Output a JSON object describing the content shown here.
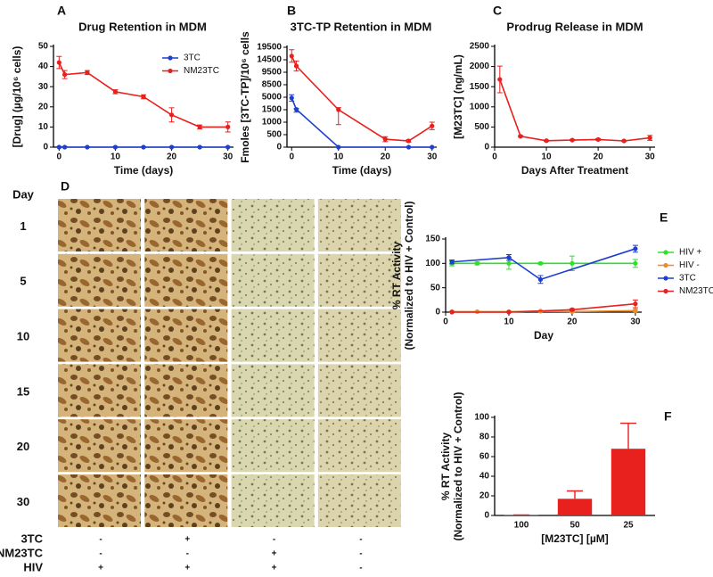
{
  "chart_data": [
    {
      "type": "line",
      "panel": "A",
      "title": "Drug Retention in MDM",
      "ylabel": [
        "[Drug] (µg/10⁶ cells)"
      ],
      "xlabel": "Time (days)",
      "xlim": [
        -1,
        31
      ],
      "xticks": [
        0,
        10,
        20,
        30
      ],
      "ylim": [
        0,
        50
      ],
      "yticks": [
        0,
        10,
        20,
        30,
        40,
        50
      ],
      "legend": "upper right",
      "series": [
        {
          "name": "3TC",
          "color": "#1f3fd0",
          "x": [
            0,
            1,
            5,
            10,
            15,
            20,
            25,
            30
          ],
          "values": [
            0,
            0,
            0,
            0,
            0,
            0,
            0,
            0
          ],
          "errors": [
            0.3,
            0.3,
            0.3,
            0.3,
            0.3,
            0.3,
            0.3,
            0.3
          ]
        },
        {
          "name": "NM23TC",
          "color": "#e8201e",
          "x": [
            0,
            1,
            5,
            10,
            15,
            20,
            25,
            30
          ],
          "values": [
            42,
            36,
            37,
            27.5,
            25,
            16,
            10,
            10
          ],
          "errors": [
            3,
            2,
            1,
            1,
            1,
            3.5,
            1,
            2.5
          ]
        }
      ]
    },
    {
      "type": "line",
      "panel": "B",
      "title": "3TC-TP Retention in MDM",
      "ylabel": [
        "Fmoles [3TC-TP]/10⁶ cells"
      ],
      "xlabel": "Time (days)",
      "xlim": [
        -1,
        31
      ],
      "xticks": [
        0,
        10,
        20,
        30
      ],
      "ylim": [
        0,
        19500
      ],
      "yticks": [
        0,
        500,
        1000,
        1500,
        5000,
        8500,
        9500,
        14500,
        19500
      ],
      "y_axis_break": true,
      "series": [
        {
          "color": "#1f3fd0",
          "x": [
            0,
            1,
            10,
            25,
            30
          ],
          "values": [
            4800,
            1600,
            0,
            0,
            0
          ],
          "errors": [
            900,
            200,
            0,
            0,
            0
          ]
        },
        {
          "color": "#e8201e",
          "x": [
            0,
            1,
            10,
            20,
            25,
            30
          ],
          "values": [
            16000,
            12000,
            1500,
            320,
            250,
            850
          ],
          "errors": [
            2500,
            2000,
            600,
            100,
            50,
            150
          ]
        }
      ]
    },
    {
      "type": "line",
      "panel": "C",
      "title": "Prodrug Release in MDM",
      "ylabel": [
        "[M23TC] (ng/mL)"
      ],
      "xlabel": "Days After Treatment",
      "xlim": [
        0,
        31
      ],
      "xticks": [
        0,
        10,
        20,
        30
      ],
      "ylim": [
        0,
        2500
      ],
      "yticks": [
        0,
        500,
        1000,
        1500,
        2000,
        2500
      ],
      "series": [
        {
          "color": "#e8201e",
          "x": [
            1,
            5,
            10,
            15,
            20,
            25,
            30
          ],
          "values": [
            1680,
            270,
            160,
            175,
            190,
            155,
            230
          ],
          "errors": [
            330,
            20,
            15,
            15,
            20,
            15,
            60
          ]
        }
      ]
    },
    {
      "type": "line",
      "panel": "E",
      "ylabel": [
        "% RT Activity",
        "(Normalized to HIV + Control)"
      ],
      "xlabel": "Day",
      "xlim": [
        0,
        31
      ],
      "xticks": [
        0,
        10,
        20,
        30
      ],
      "ylim": [
        0,
        150
      ],
      "yticks": [
        0,
        50,
        100,
        150
      ],
      "legend": "right",
      "series": [
        {
          "name": "HIV +",
          "color": "#2ee02e",
          "x": [
            1,
            5,
            10,
            15,
            20,
            30
          ],
          "values": [
            100,
            100,
            100,
            100,
            100,
            100
          ],
          "errors": [
            5,
            3,
            12,
            2,
            15,
            8
          ]
        },
        {
          "name": "HIV -",
          "color": "#f08a24",
          "x": [
            1,
            5,
            10,
            15,
            20,
            30
          ],
          "values": [
            1,
            1,
            1,
            2,
            1,
            3
          ],
          "errors": [
            1,
            1,
            1,
            1,
            1,
            2
          ]
        },
        {
          "name": "3TC",
          "color": "#1f3fd0",
          "x": [
            1,
            10,
            15,
            30
          ],
          "values": [
            103,
            112,
            67,
            130
          ],
          "errors": [
            4,
            6,
            8,
            7
          ]
        },
        {
          "name": "NM23TC",
          "color": "#e8201e",
          "x": [
            1,
            10,
            20,
            30
          ],
          "values": [
            0,
            0,
            5,
            17
          ],
          "errors": [
            1,
            1,
            2,
            8
          ]
        }
      ]
    },
    {
      "type": "bar",
      "panel": "F",
      "ylabel": [
        "% RT Activity",
        "(Normalized to HIV + Control)"
      ],
      "xlabel": "[M23TC] [µM]",
      "categories": [
        "100",
        "50",
        "25"
      ],
      "values": [
        0.5,
        17,
        68
      ],
      "errors": [
        0,
        8,
        26
      ],
      "color": "#e8201e",
      "ylim": [
        0,
        100
      ],
      "yticks": [
        0,
        20,
        40,
        60,
        80,
        100
      ]
    }
  ],
  "panel_d": {
    "label": "D",
    "row_header": "Day",
    "rows": [
      "1",
      "5",
      "10",
      "15",
      "20",
      "30"
    ],
    "treatments": [
      {
        "name": "3TC",
        "marks": [
          "-",
          "+",
          "-",
          "-"
        ]
      },
      {
        "name": "NM23TC",
        "marks": [
          "-",
          "-",
          "+",
          "-"
        ]
      },
      {
        "name": "HIV",
        "marks": [
          "+",
          "+",
          "+",
          "-"
        ]
      }
    ]
  }
}
